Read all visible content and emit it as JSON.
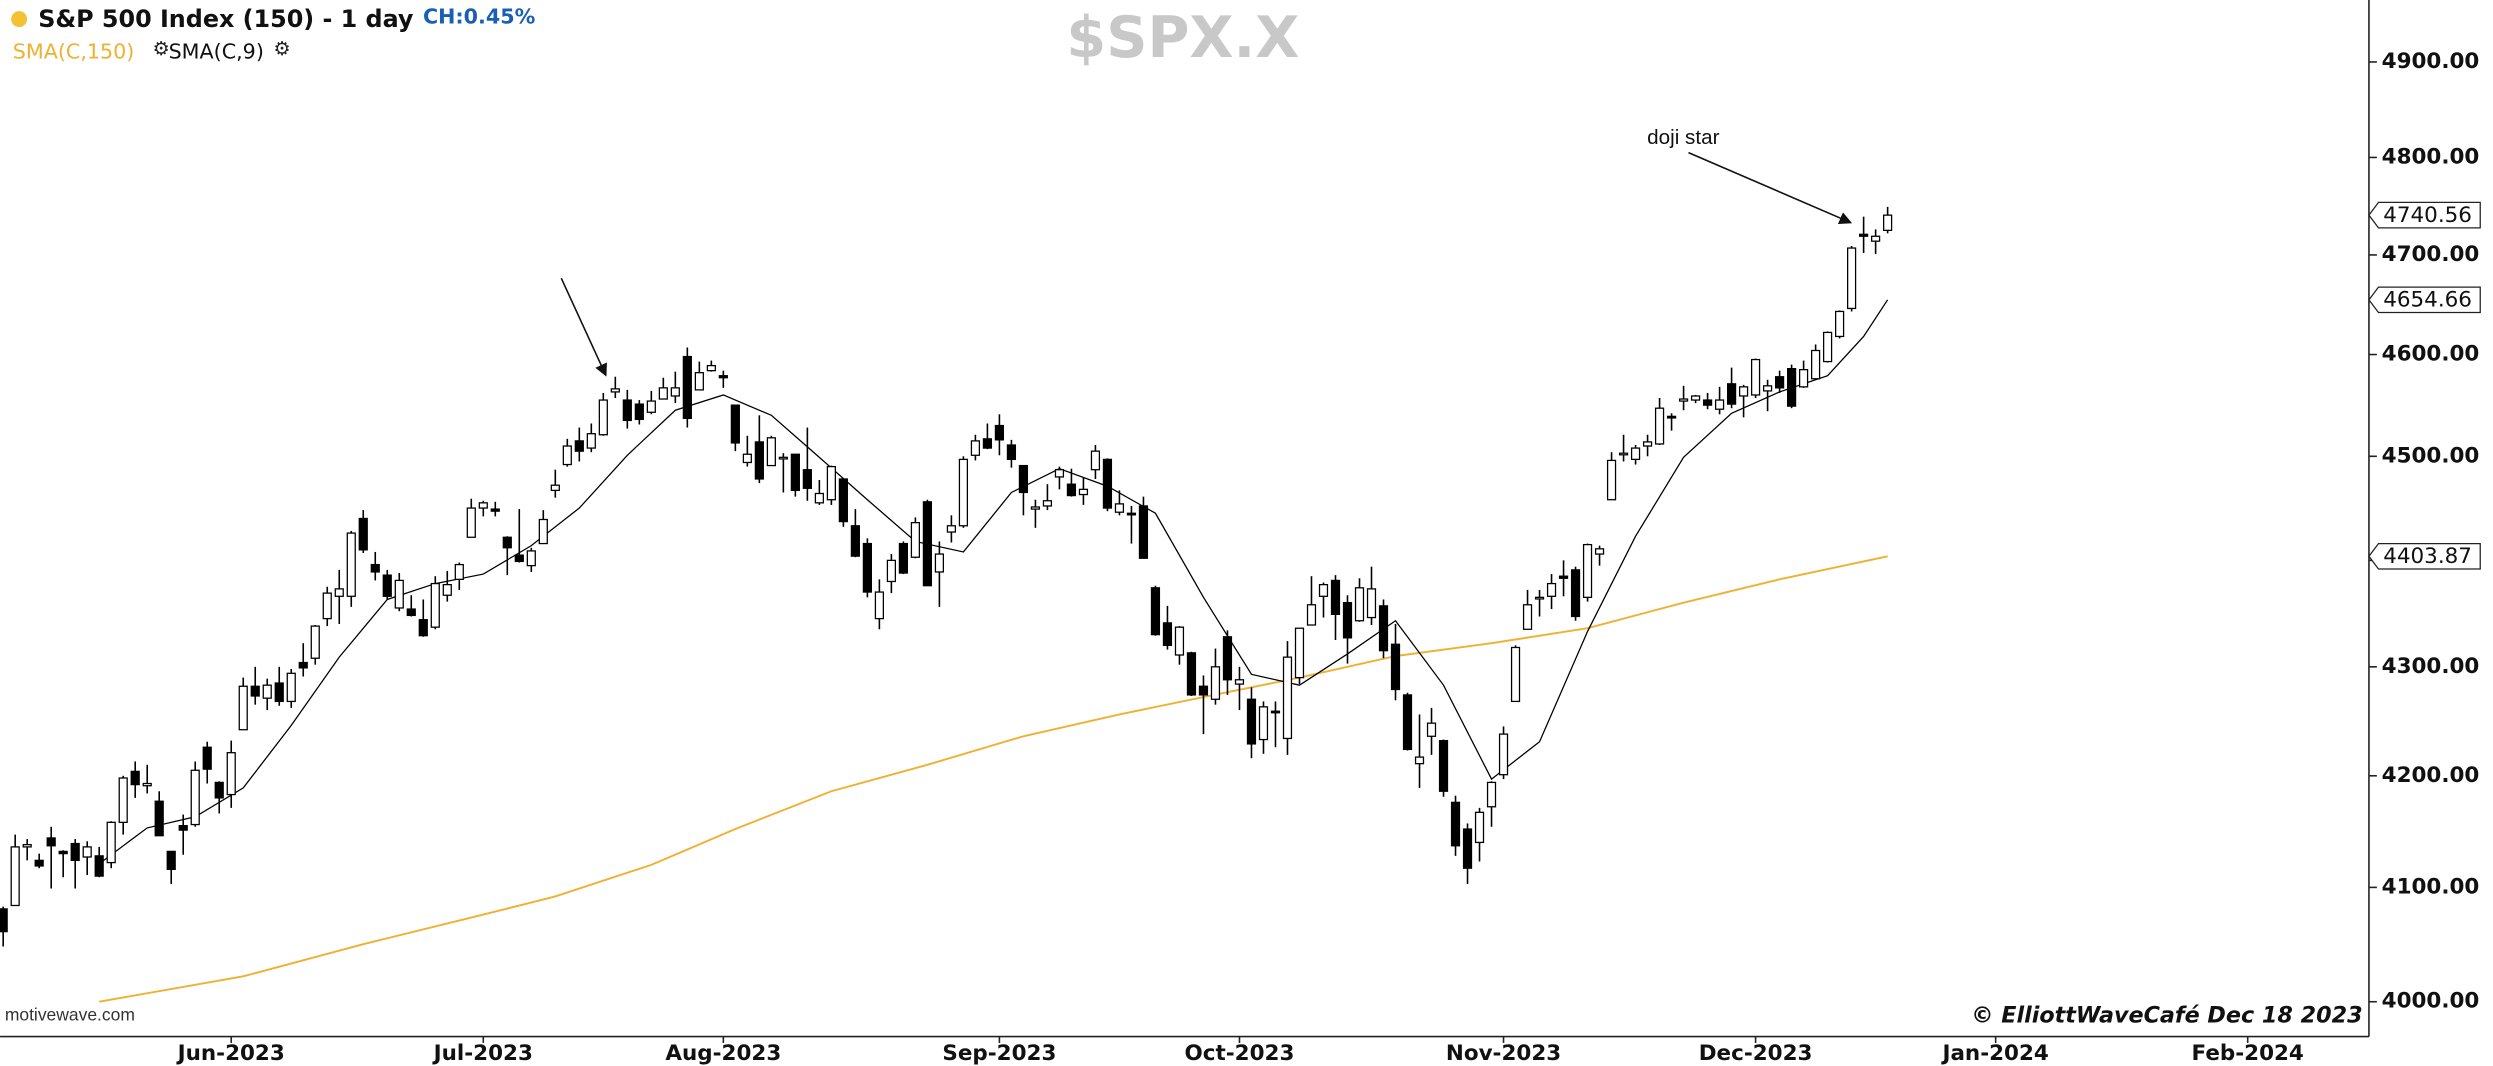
{
  "chart_data": {
    "type": "candlestick",
    "header": {
      "symbol_title": "S&P 500 Index (150) - 1 day",
      "change": "CH:0.45%"
    },
    "title": "$SPX.X",
    "watermark": "motivewave.com",
    "copyright": "© ElliottWaveCafé Dec 18 2023",
    "annotations": [
      {
        "text": "doji star"
      }
    ],
    "log_scale": true,
    "xlim": [
      -0.26,
      197.1
    ],
    "xticks": [
      {
        "value": 19,
        "label": "Jun-2023"
      },
      {
        "value": 40,
        "label": "Jul-2023"
      },
      {
        "value": 60,
        "label": "Aug-2023"
      },
      {
        "value": 83,
        "label": "Sep-2023"
      },
      {
        "value": 103,
        "label": "Oct-2023"
      },
      {
        "value": 125,
        "label": "Nov-2023"
      },
      {
        "value": 146,
        "label": "Dec-2023"
      },
      {
        "value": 166,
        "label": "Jan-2024"
      },
      {
        "value": 187,
        "label": "Feb-2024"
      }
    ],
    "ylim": [
      3970,
      4966
    ],
    "yticks": [
      {
        "value": 4000,
        "label": "4000.00"
      },
      {
        "value": 4100,
        "label": "4100.00"
      },
      {
        "value": 4200,
        "label": "4200.00"
      },
      {
        "value": 4300,
        "label": "4300.00"
      },
      {
        "value": 4400,
        "label": "4400.00"
      },
      {
        "value": 4500,
        "label": "4500.00"
      },
      {
        "value": 4600,
        "label": "4600.00"
      },
      {
        "value": 4700,
        "label": "4700.00"
      },
      {
        "value": 4800,
        "label": "4800.00"
      },
      {
        "value": 4900,
        "label": "4900.00"
      }
    ],
    "up_color": "#ffffff",
    "down_color": "#000000",
    "ohlc": [
      [
        4081,
        4083,
        4048,
        4061
      ],
      [
        4084,
        4147,
        4084,
        4136
      ],
      [
        4136,
        4143,
        4124,
        4138
      ],
      [
        4124,
        4130,
        4117,
        4119
      ],
      [
        4144,
        4154,
        4099,
        4137
      ],
      [
        4132,
        4133,
        4109,
        4130
      ],
      [
        4139,
        4143,
        4099,
        4124
      ],
      [
        4127,
        4141,
        4111,
        4136
      ],
      [
        4128,
        4136,
        4109,
        4110
      ],
      [
        4122,
        4159,
        4117,
        4158
      ],
      [
        4158,
        4200,
        4147,
        4198
      ],
      [
        4204,
        4213,
        4180,
        4192
      ],
      [
        4191,
        4210,
        4184,
        4193
      ],
      [
        4177,
        4186,
        4146,
        4146
      ],
      [
        4132,
        4132,
        4103,
        4116
      ],
      [
        4155,
        4165,
        4129,
        4151
      ],
      [
        4156,
        4213,
        4154,
        4205
      ],
      [
        4226,
        4231,
        4193,
        4206
      ],
      [
        4194,
        4195,
        4166,
        4180
      ],
      [
        4183,
        4232,
        4171,
        4221
      ],
      [
        4242,
        4290,
        4242,
        4282
      ],
      [
        4282,
        4300,
        4265,
        4273
      ],
      [
        4271,
        4289,
        4260,
        4283
      ],
      [
        4285,
        4300,
        4264,
        4268
      ],
      [
        4268,
        4298,
        4262,
        4294
      ],
      [
        4304,
        4322,
        4291,
        4299
      ],
      [
        4308,
        4339,
        4302,
        4338
      ],
      [
        4345,
        4375,
        4338,
        4369
      ],
      [
        4366,
        4391,
        4340,
        4373
      ],
      [
        4366,
        4428,
        4356,
        4426
      ],
      [
        4440,
        4448,
        4407,
        4410
      ],
      [
        4396,
        4408,
        4381,
        4389
      ],
      [
        4386,
        4391,
        4363,
        4366
      ],
      [
        4355,
        4388,
        4352,
        4381
      ],
      [
        4354,
        4367,
        4347,
        4348
      ],
      [
        4344,
        4363,
        4328,
        4329
      ],
      [
        4337,
        4385,
        4335,
        4378
      ],
      [
        4367,
        4390,
        4361,
        4377
      ],
      [
        4382,
        4398,
        4372,
        4396
      ],
      [
        4422,
        4459,
        4422,
        4450
      ],
      [
        4450,
        4457,
        4442,
        4455
      ],
      [
        4449,
        4456,
        4442,
        4447
      ],
      [
        4422,
        4423,
        4386,
        4412
      ],
      [
        4405,
        4449,
        4398,
        4399
      ],
      [
        4395,
        4412,
        4389,
        4409
      ],
      [
        4416,
        4448,
        4416,
        4439
      ],
      [
        4467,
        4487,
        4460,
        4472
      ],
      [
        4492,
        4517,
        4490,
        4510
      ],
      [
        4515,
        4528,
        4495,
        4505
      ],
      [
        4508,
        4532,
        4504,
        4522
      ],
      [
        4521,
        4562,
        4520,
        4555
      ],
      [
        4563,
        4578,
        4557,
        4566
      ],
      [
        4555,
        4565,
        4527,
        4535
      ],
      [
        4551,
        4555,
        4531,
        4536
      ],
      [
        4543,
        4564,
        4541,
        4554
      ],
      [
        4556,
        4577,
        4556,
        4567
      ],
      [
        4559,
        4583,
        4552,
        4567
      ],
      [
        4598,
        4607,
        4528,
        4537
      ],
      [
        4565,
        4593,
        4565,
        4582
      ],
      [
        4584,
        4594,
        4583,
        4589
      ],
      [
        4579,
        4584,
        4567,
        4577
      ],
      [
        4550,
        4550,
        4505,
        4513
      ],
      [
        4494,
        4520,
        4490,
        4502
      ],
      [
        4514,
        4540,
        4474,
        4478
      ],
      [
        4491,
        4520,
        4491,
        4518
      ],
      [
        4498,
        4503,
        4465,
        4499
      ],
      [
        4502,
        4502,
        4461,
        4467
      ],
      [
        4487,
        4528,
        4457,
        4469
      ],
      [
        4455,
        4477,
        4453,
        4464
      ],
      [
        4458,
        4491,
        4453,
        4490
      ],
      [
        4478,
        4478,
        4432,
        4437
      ],
      [
        4433,
        4449,
        4403,
        4404
      ],
      [
        4416,
        4421,
        4365,
        4370
      ],
      [
        4345,
        4382,
        4335,
        4370
      ],
      [
        4380,
        4406,
        4369,
        4400
      ],
      [
        4416,
        4418,
        4387,
        4388
      ],
      [
        4403,
        4441,
        4402,
        4436
      ],
      [
        4456,
        4458,
        4376,
        4376
      ],
      [
        4389,
        4418,
        4356,
        4406
      ],
      [
        4427,
        4443,
        4417,
        4433
      ],
      [
        4433,
        4500,
        4431,
        4497
      ],
      [
        4501,
        4521,
        4496,
        4515
      ],
      [
        4517,
        4532,
        4507,
        4508
      ],
      [
        4530,
        4541,
        4501,
        4516
      ],
      [
        4511,
        4516,
        4489,
        4497
      ],
      [
        4491,
        4491,
        4443,
        4465
      ],
      [
        4449,
        4458,
        4431,
        4451
      ],
      [
        4452,
        4473,
        4448,
        4457
      ],
      [
        4480,
        4490,
        4468,
        4487
      ],
      [
        4473,
        4488,
        4461,
        4462
      ],
      [
        4463,
        4479,
        4453,
        4468
      ],
      [
        4487,
        4511,
        4478,
        4505
      ],
      [
        4497,
        4498,
        4447,
        4450
      ],
      [
        4446,
        4467,
        4443,
        4454
      ],
      [
        4445,
        4452,
        4416,
        4444
      ],
      [
        4452,
        4461,
        4402,
        4402
      ],
      [
        4374,
        4376,
        4329,
        4330
      ],
      [
        4341,
        4357,
        4316,
        4320
      ],
      [
        4311,
        4338,
        4302,
        4337
      ],
      [
        4313,
        4314,
        4273,
        4274
      ],
      [
        4282,
        4292,
        4238,
        4274
      ],
      [
        4270,
        4317,
        4265,
        4300
      ],
      [
        4328,
        4334,
        4274,
        4288
      ],
      [
        4284,
        4300,
        4260,
        4288
      ],
      [
        4270,
        4281,
        4216,
        4229
      ],
      [
        4233,
        4268,
        4220,
        4263
      ],
      [
        4259,
        4268,
        4226,
        4258
      ],
      [
        4234,
        4324,
        4219,
        4309
      ],
      [
        4290,
        4336,
        4284,
        4336
      ],
      [
        4339,
        4385,
        4339,
        4358
      ],
      [
        4366,
        4379,
        4346,
        4377
      ],
      [
        4381,
        4386,
        4325,
        4349
      ],
      [
        4360,
        4367,
        4303,
        4327
      ],
      [
        4343,
        4383,
        4342,
        4374
      ],
      [
        4346,
        4394,
        4339,
        4373
      ],
      [
        4357,
        4363,
        4308,
        4315
      ],
      [
        4321,
        4340,
        4269,
        4279
      ],
      [
        4274,
        4276,
        4223,
        4224
      ],
      [
        4211,
        4256,
        4189,
        4217
      ],
      [
        4236,
        4262,
        4219,
        4248
      ],
      [
        4232,
        4233,
        4181,
        4186
      ],
      [
        4176,
        4182,
        4128,
        4137
      ],
      [
        4152,
        4157,
        4103,
        4117
      ],
      [
        4140,
        4171,
        4123,
        4167
      ],
      [
        4172,
        4195,
        4154,
        4194
      ],
      [
        4201,
        4245,
        4197,
        4238
      ],
      [
        4268,
        4320,
        4268,
        4318
      ],
      [
        4335,
        4372,
        4335,
        4358
      ],
      [
        4364,
        4372,
        4347,
        4365
      ],
      [
        4366,
        4387,
        4354,
        4378
      ],
      [
        4385,
        4400,
        4366,
        4383
      ],
      [
        4391,
        4394,
        4343,
        4347
      ],
      [
        4365,
        4416,
        4361,
        4415
      ],
      [
        4406,
        4414,
        4395,
        4411
      ],
      [
        4458,
        4504,
        4458,
        4496
      ],
      [
        4503,
        4521,
        4495,
        4503
      ],
      [
        4497,
        4511,
        4492,
        4508
      ],
      [
        4510,
        4521,
        4500,
        4514
      ],
      [
        4512,
        4557,
        4511,
        4547
      ],
      [
        4539,
        4542,
        4525,
        4538
      ],
      [
        4554,
        4569,
        4545,
        4556
      ],
      [
        4555,
        4560,
        4552,
        4559
      ],
      [
        4555,
        4562,
        4546,
        4550
      ],
      [
        4546,
        4568,
        4541,
        4555
      ],
      [
        4571,
        4587,
        4547,
        4551
      ],
      [
        4559,
        4570,
        4538,
        4568
      ],
      [
        4560,
        4596,
        4557,
        4595
      ],
      [
        4564,
        4575,
        4544,
        4569
      ],
      [
        4578,
        4584,
        4562,
        4567
      ],
      [
        4586,
        4590,
        4547,
        4549
      ],
      [
        4568,
        4594,
        4567,
        4585
      ],
      [
        4576,
        4610,
        4575,
        4604
      ],
      [
        4593,
        4623,
        4592,
        4622
      ],
      [
        4618,
        4644,
        4616,
        4643
      ],
      [
        4646,
        4709,
        4643,
        4707
      ],
      [
        4721,
        4739,
        4702,
        4719
      ],
      [
        4714,
        4726,
        4701,
        4719
      ],
      [
        4725,
        4749,
        4722,
        4740.56
      ]
    ],
    "series": [
      {
        "name": "SMA(C,150)",
        "color": "#f0b030",
        "x": [
          8,
          20,
          30,
          40,
          46,
          54,
          61,
          69,
          77,
          85,
          93,
          100,
          108,
          116,
          124,
          132,
          140,
          148,
          157
        ],
        "values": [
          4000,
          4022,
          4050,
          4076,
          4092,
          4120,
          4152,
          4186,
          4210,
          4236,
          4256,
          4272,
          4290,
          4310,
          4322,
          4336,
          4360,
          4382,
          4403.87
        ]
      },
      {
        "name": "SMA(C,9)",
        "color": "#000000",
        "x": [
          8,
          12,
          16,
          20,
          24,
          28,
          32,
          36,
          40,
          44,
          48,
          52,
          56,
          60,
          64,
          68,
          72,
          76,
          80,
          84,
          88,
          92,
          96,
          100,
          104,
          108,
          112,
          116,
          120,
          124,
          128,
          132,
          136,
          140,
          144,
          148,
          152,
          155,
          157
        ],
        "values": [
          4121,
          4153,
          4163,
          4189,
          4246,
          4309,
          4363,
          4378,
          4387,
          4414,
          4450,
          4501,
          4545,
          4560,
          4540,
          4499,
          4458,
          4418,
          4408,
          4465,
          4488,
          4471,
          4445,
          4365,
          4293,
          4283,
          4312,
          4343,
          4283,
          4197,
          4231,
          4333,
          4423,
          4499,
          4542,
          4563,
          4579,
          4618,
          4654.66
        ]
      }
    ]
  }
}
